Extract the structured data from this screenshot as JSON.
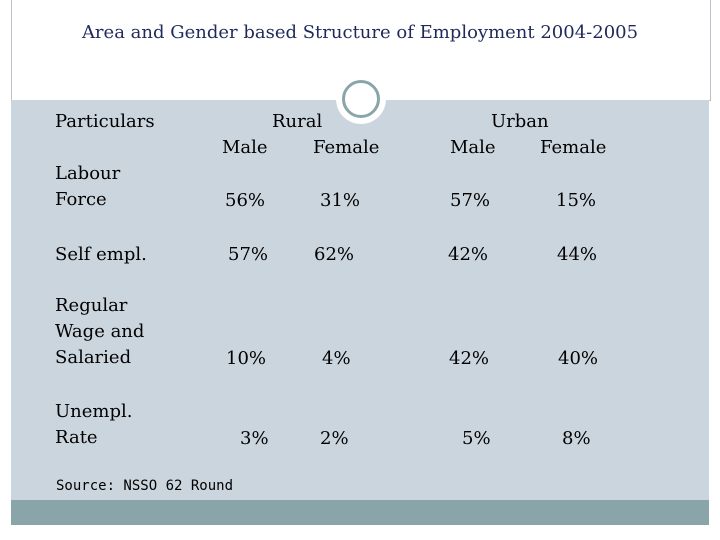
{
  "title": "Area and Gender based Structure of Employment 2004-2005",
  "header": {
    "particulars": "Particulars",
    "rural": "Rural",
    "urban": "Urban",
    "male": "Male",
    "female": "Female"
  },
  "rows": [
    {
      "label": "Labour\nForce",
      "rural_male": "56%",
      "rural_female": "31%",
      "urban_male": "57%",
      "urban_female": "15%"
    },
    {
      "label": "Self empl.",
      "rural_male": "57%",
      "rural_female": "62%",
      "urban_male": "42%",
      "urban_female": "44%"
    },
    {
      "label": "Regular\nWage and\nSalaried",
      "rural_male": "10%",
      "rural_female": "4%",
      "urban_male": "42%",
      "urban_female": "40%"
    },
    {
      "label": "Unempl.\nRate",
      "rural_male": "3%",
      "rural_female": "2%",
      "urban_male": "5%",
      "urban_female": "8%"
    }
  ],
  "source": "Source: NSSO 62 Round"
}
